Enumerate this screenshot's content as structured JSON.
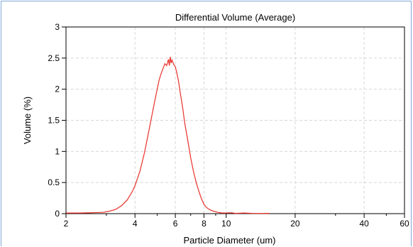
{
  "chart_data": {
    "type": "line",
    "title": "Differential Volume (Average)",
    "xlabel": "Particle Diameter (um)",
    "ylabel": "Volume (%)",
    "x_scale": "log",
    "xlim": [
      2,
      60
    ],
    "ylim": [
      0,
      3
    ],
    "grid": true,
    "line_color": "#e8312a",
    "x_ticks": [
      {
        "value": 2,
        "label": "2"
      },
      {
        "value": 4,
        "label": "4"
      },
      {
        "value": 6,
        "label": "6"
      },
      {
        "value": 8,
        "label": "8"
      },
      {
        "value": 10,
        "label": "10"
      },
      {
        "value": 20,
        "label": "20"
      },
      {
        "value": 40,
        "label": "40"
      },
      {
        "value": 60,
        "label": "60"
      }
    ],
    "x_minor_ticks": [
      3,
      5,
      7,
      9,
      30,
      50
    ],
    "y_ticks": [
      {
        "value": 0,
        "label": "0"
      },
      {
        "value": 0.5,
        "label": "0.5"
      },
      {
        "value": 1,
        "label": "1"
      },
      {
        "value": 1.5,
        "label": "1.5"
      },
      {
        "value": 2,
        "label": "2"
      },
      {
        "value": 2.5,
        "label": "2.5"
      },
      {
        "value": 3,
        "label": "3"
      }
    ],
    "series": [
      {
        "x": [
          2.0,
          2.3,
          2.6,
          2.9,
          3.1,
          3.3,
          3.5,
          3.7,
          3.9,
          4.0,
          4.2,
          4.4,
          4.6,
          4.8,
          5.0,
          5.1,
          5.2,
          5.3,
          5.4,
          5.5,
          5.55,
          5.6,
          5.65,
          5.7,
          5.75,
          5.8,
          5.9,
          6.0,
          6.1,
          6.2,
          6.3,
          6.45,
          6.6,
          6.8,
          7.0,
          7.2,
          7.4,
          7.6,
          7.8,
          8.0,
          8.2,
          8.5,
          8.8,
          9.2,
          9.6,
          10.0,
          10.5,
          11.0,
          12.0,
          13.0,
          14.0,
          15.5
        ],
        "y": [
          0.01,
          0.01,
          0.015,
          0.02,
          0.04,
          0.07,
          0.13,
          0.22,
          0.36,
          0.45,
          0.68,
          0.98,
          1.33,
          1.68,
          2.0,
          2.15,
          2.25,
          2.33,
          2.41,
          2.38,
          2.43,
          2.48,
          2.38,
          2.52,
          2.42,
          2.47,
          2.4,
          2.36,
          2.25,
          2.12,
          1.95,
          1.72,
          1.45,
          1.18,
          0.9,
          0.68,
          0.5,
          0.36,
          0.24,
          0.15,
          0.1,
          0.06,
          0.04,
          0.02,
          0.01,
          0.01,
          0.015,
          0.005,
          0.01,
          0.005,
          0.003,
          0.005
        ]
      }
    ]
  }
}
